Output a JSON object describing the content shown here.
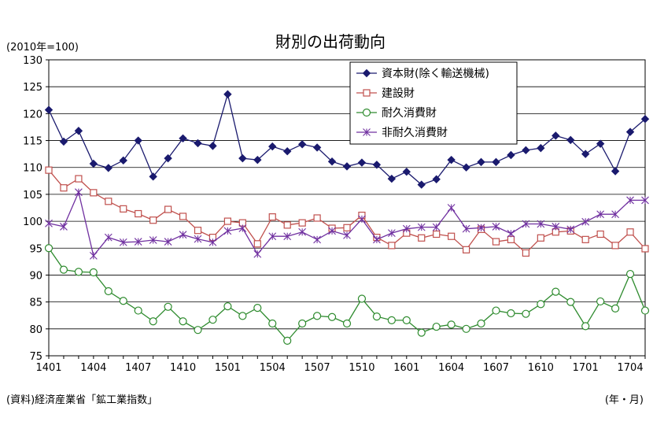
{
  "chart_data": {
    "type": "line",
    "title": "財別の出荷動向",
    "unit_label": "(2010年=100)",
    "source": "(資料)経済産業省「鉱工業指数」",
    "xlabel": "(年・月)",
    "ylim": [
      75,
      130
    ],
    "y_ticks": [
      75,
      80,
      85,
      90,
      95,
      100,
      105,
      110,
      115,
      120,
      125,
      130
    ],
    "x_tick_labels": [
      "1401",
      "1404",
      "1407",
      "1410",
      "1501",
      "1504",
      "1507",
      "1510",
      "1601",
      "1604",
      "1607",
      "1610",
      "1701",
      "1704"
    ],
    "x": [
      "1401",
      "1402",
      "1403",
      "1404",
      "1405",
      "1406",
      "1407",
      "1408",
      "1409",
      "1410",
      "1411",
      "1412",
      "1501",
      "1502",
      "1503",
      "1504",
      "1505",
      "1506",
      "1507",
      "1508",
      "1509",
      "1510",
      "1511",
      "1512",
      "1601",
      "1602",
      "1603",
      "1604",
      "1605",
      "1606",
      "1607",
      "1608",
      "1609",
      "1610",
      "1611",
      "1612",
      "1701",
      "1702",
      "1703",
      "1704",
      "1705"
    ],
    "grid": "horizontal",
    "legend_position": "top-right",
    "series": [
      {
        "name": "資本財(除く輸送機械)",
        "color": "#1a1a6e",
        "marker": "diamond-filled",
        "values": [
          120.7,
          114.8,
          116.8,
          110.7,
          109.9,
          111.3,
          115.0,
          108.3,
          111.7,
          115.4,
          114.5,
          114.0,
          123.6,
          111.7,
          111.4,
          113.9,
          113.0,
          114.3,
          113.7,
          111.1,
          110.2,
          110.9,
          110.5,
          107.9,
          109.2,
          106.8,
          107.8,
          111.4,
          110.0,
          111.0,
          111.0,
          112.3,
          113.2,
          113.6,
          115.9,
          115.1,
          112.5,
          114.4,
          109.3,
          116.6,
          119.0
        ]
      },
      {
        "name": "建設財",
        "color": "#c0504d",
        "marker": "square-open",
        "values": [
          109.5,
          106.2,
          107.9,
          105.3,
          103.7,
          102.3,
          101.4,
          100.2,
          102.2,
          100.9,
          98.3,
          97.0,
          100.0,
          99.7,
          95.8,
          100.8,
          99.3,
          99.7,
          100.6,
          98.7,
          98.8,
          101.1,
          97.0,
          95.5,
          97.8,
          96.9,
          97.6,
          97.2,
          94.7,
          98.5,
          96.2,
          96.6,
          94.1,
          96.9,
          98.0,
          98.2,
          96.6,
          97.6,
          95.5,
          98.0,
          94.9
        ]
      },
      {
        "name": "耐久消費財",
        "color": "#2e8b2e",
        "marker": "circle-open",
        "values": [
          95.0,
          91.0,
          90.6,
          90.5,
          87.0,
          85.2,
          83.4,
          81.4,
          84.1,
          81.4,
          79.8,
          81.7,
          84.2,
          82.4,
          83.9,
          81.0,
          77.8,
          81.0,
          82.4,
          82.2,
          81.0,
          85.6,
          82.3,
          81.6,
          81.6,
          79.3,
          80.4,
          80.8,
          80.0,
          81.0,
          83.4,
          82.9,
          82.8,
          84.6,
          86.9,
          85.0,
          80.5,
          85.1,
          83.8,
          90.2,
          83.4
        ]
      },
      {
        "name": "非耐久消費財",
        "color": "#7030a0",
        "marker": "asterisk",
        "values": [
          99.6,
          99.0,
          105.4,
          93.6,
          97.0,
          96.1,
          96.2,
          96.5,
          96.2,
          97.5,
          96.7,
          96.1,
          98.2,
          98.7,
          93.9,
          97.2,
          97.2,
          98.0,
          96.6,
          98.2,
          97.4,
          100.4,
          96.6,
          97.8,
          98.6,
          98.9,
          98.9,
          102.5,
          98.6,
          98.8,
          99.0,
          97.7,
          99.5,
          99.5,
          99.0,
          98.5,
          99.9,
          101.3,
          101.3,
          103.9,
          103.9
        ]
      }
    ]
  }
}
